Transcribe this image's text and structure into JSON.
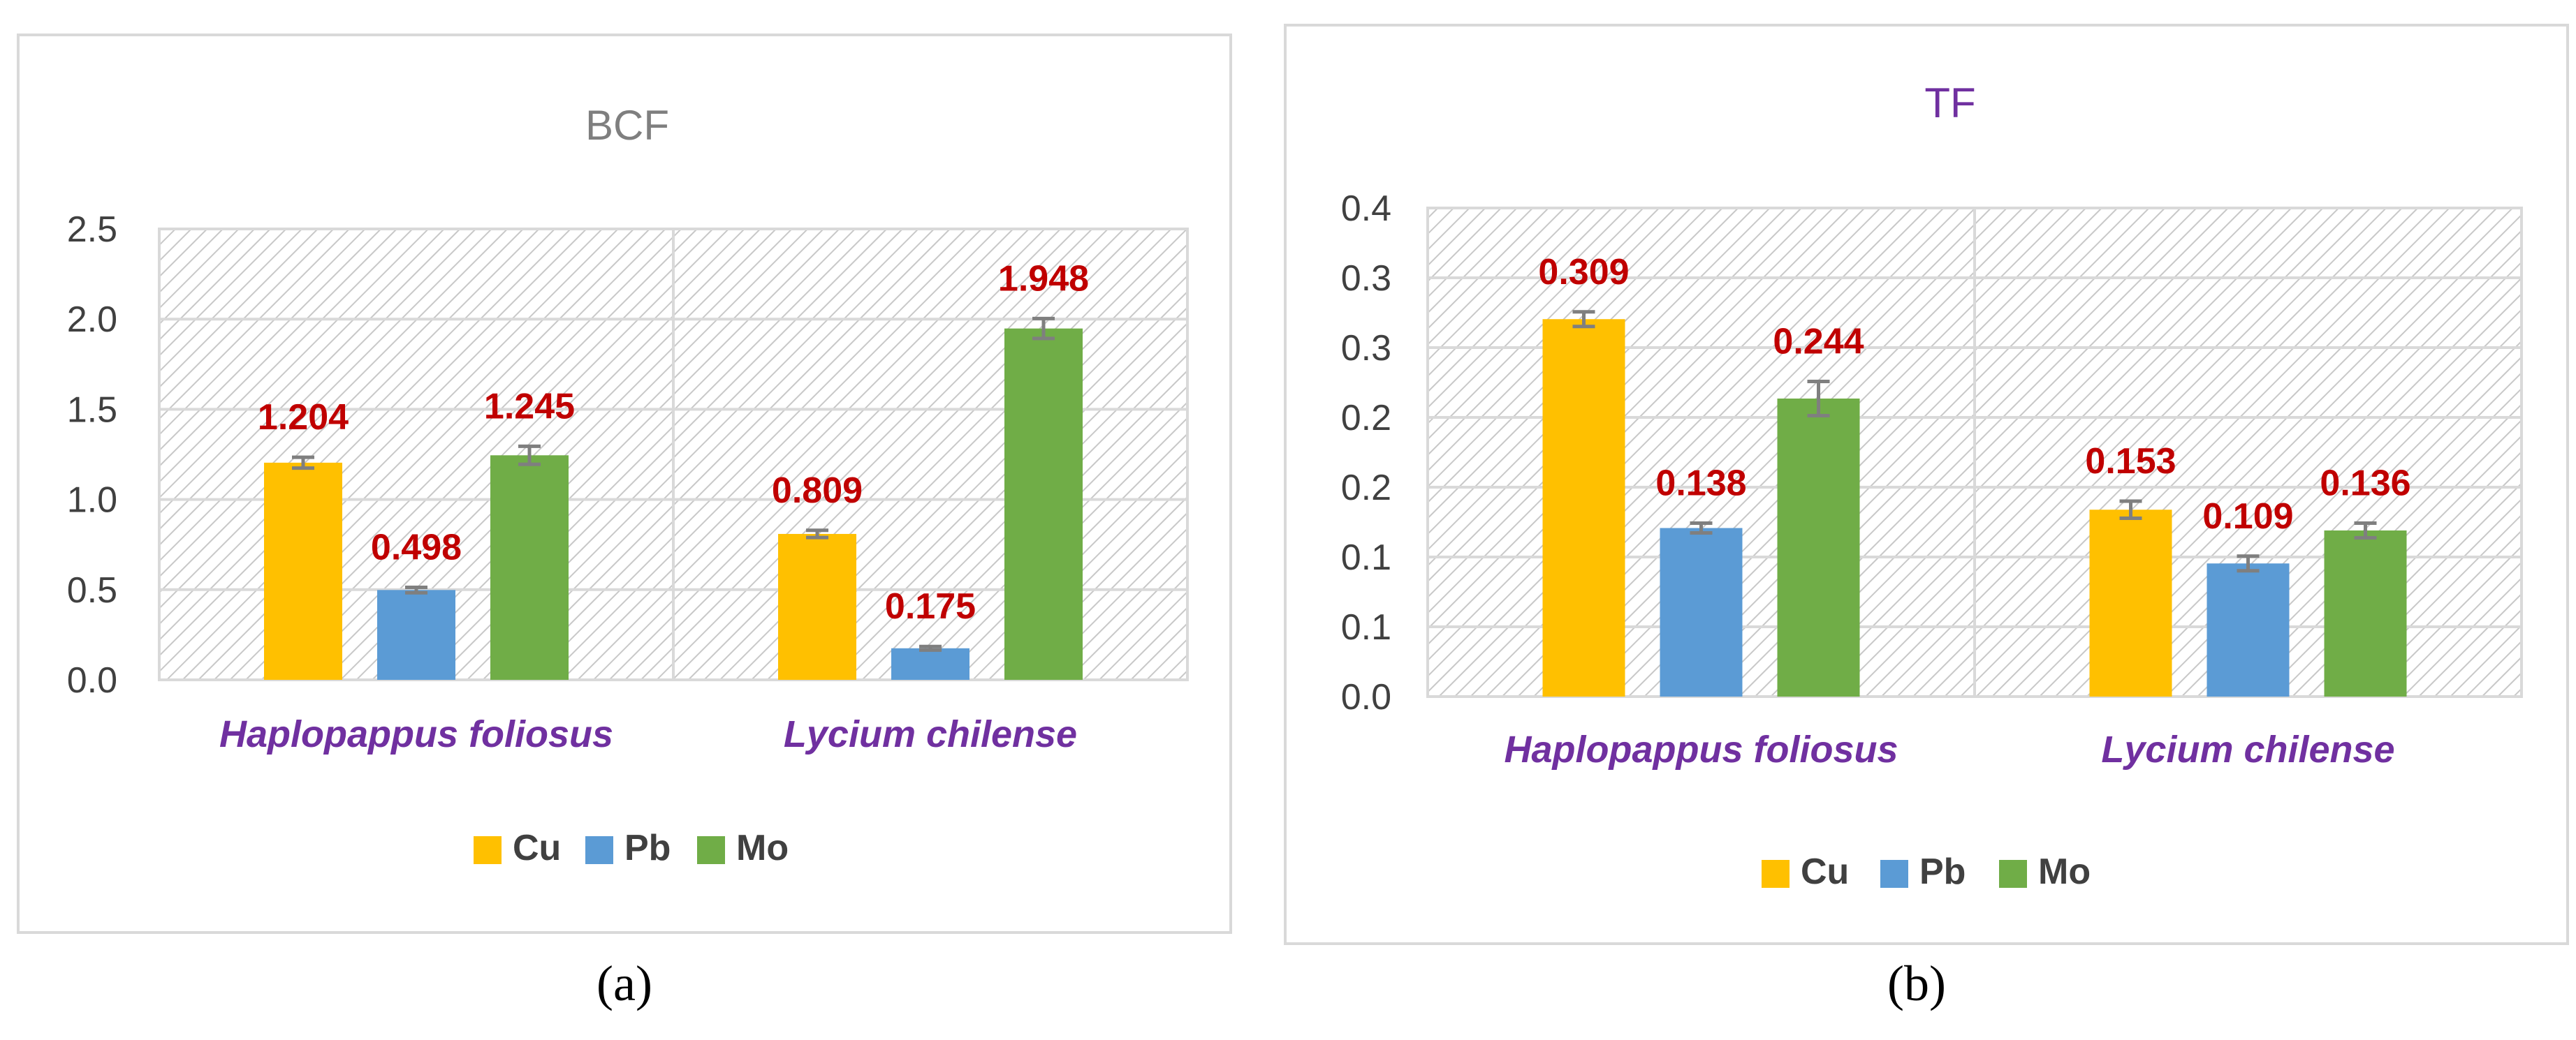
{
  "colors": {
    "Cu": "#FFC000",
    "Pb": "#5B9BD5",
    "Mo": "#70AD47",
    "value_label": "#C00000",
    "category_label": "#7030A0",
    "errorbar": "#7f7f7f"
  },
  "captions": {
    "a": "(a)",
    "b": "(b)"
  },
  "chart_data": [
    {
      "type": "bar",
      "title": "BCF",
      "title_color": "#7f7f7f",
      "categories": [
        "Haplopappus foliosus",
        "Lycium chilense"
      ],
      "series": [
        {
          "name": "Cu",
          "values": [
            1.204,
            0.809
          ],
          "errors": [
            0.03,
            0.02
          ],
          "labels": [
            "1.204",
            "0.809"
          ]
        },
        {
          "name": "Pb",
          "values": [
            0.498,
            0.175
          ],
          "errors": [
            0.015,
            0.01
          ],
          "labels": [
            "0.498",
            "0.175"
          ]
        },
        {
          "name": "Mo",
          "values": [
            1.245,
            1.948
          ],
          "errors": [
            0.05,
            0.055
          ],
          "labels": [
            "1.245",
            "1.948"
          ]
        }
      ],
      "ylim": [
        0,
        2.5
      ],
      "yticks": [
        "0.0",
        "0.5",
        "1.0",
        "1.5",
        "2.0",
        "2.5"
      ],
      "xlabel": "",
      "ylabel": "",
      "legend": [
        "Cu",
        "Pb",
        "Mo"
      ],
      "legend_position": "bottom",
      "grid": true
    },
    {
      "type": "bar",
      "title": "TF",
      "title_color": "#7030A0",
      "categories": [
        "Haplopappus foliosus",
        "Lycium chilense"
      ],
      "series": [
        {
          "name": "Cu",
          "values": [
            0.309,
            0.153
          ],
          "errors": [
            0.006,
            0.007
          ],
          "labels": [
            "0.309",
            "0.153"
          ]
        },
        {
          "name": "Pb",
          "values": [
            0.138,
            0.109
          ],
          "errors": [
            0.004,
            0.006
          ],
          "labels": [
            "0.138",
            "0.109"
          ]
        },
        {
          "name": "Mo",
          "values": [
            0.244,
            0.136
          ],
          "errors": [
            0.014,
            0.006
          ],
          "labels": [
            "0.244",
            "0.136"
          ]
        }
      ],
      "ylim": [
        0,
        0.4
      ],
      "yticks": [
        "0.0",
        "0.1",
        "0.1",
        "0.2",
        "0.2",
        "0.3",
        "0.3",
        "0.4"
      ],
      "xlabel": "",
      "ylabel": "",
      "legend": [
        "Cu",
        "Pb",
        "Mo"
      ],
      "legend_position": "bottom",
      "grid": true
    }
  ]
}
